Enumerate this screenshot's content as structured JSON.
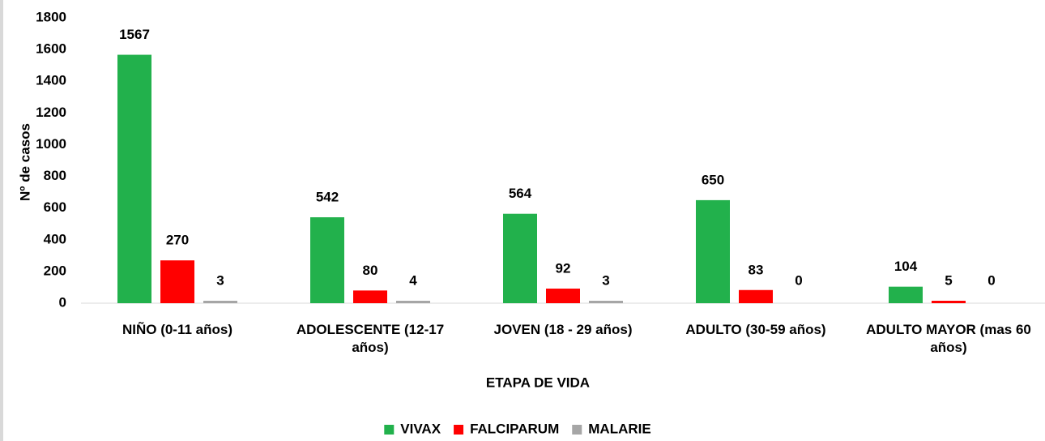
{
  "chart_data": {
    "type": "bar",
    "y_label": "Nº de casos",
    "x_label": "ETAPA DE VIDA",
    "categories": [
      "NIÑO (0-11 años)",
      "ADOLESCENTE (12-17 años)",
      "JOVEN (18 - 29 años)",
      "ADULTO (30-59 años)",
      "ADULTO MAYOR (mas 60 años)"
    ],
    "series": [
      {
        "name": "VIVAX",
        "color": "#22b14c",
        "values": [
          1567,
          542,
          564,
          650,
          104
        ]
      },
      {
        "name": "FALCIPARUM",
        "color": "#ff0000",
        "values": [
          270,
          80,
          92,
          83,
          5
        ]
      },
      {
        "name": "MALARIE",
        "color": "#a6a6a6",
        "values": [
          3,
          4,
          3,
          0,
          0
        ]
      }
    ],
    "ylim": [
      0,
      1800
    ],
    "yticks": [
      0,
      200,
      400,
      600,
      800,
      1000,
      1200,
      1400,
      1600,
      1800
    ],
    "grid": false,
    "legend": "bottom"
  }
}
